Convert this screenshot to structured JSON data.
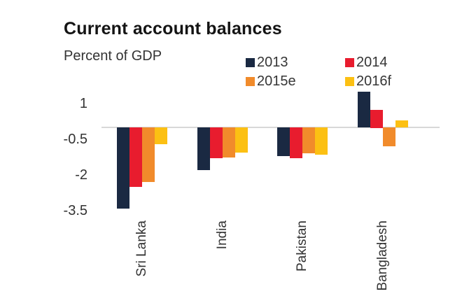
{
  "chart_data": {
    "type": "bar",
    "title": "Current account balances",
    "subtitle": "Percent of GDP",
    "categories": [
      "Sri Lanka",
      "India",
      "Pakistan",
      "Bangladesh"
    ],
    "series": [
      {
        "name": "2013",
        "color": "#1a2942",
        "values": [
          -3.4,
          -1.8,
          -1.2,
          1.5
        ]
      },
      {
        "name": "2014",
        "color": "#e81c2e",
        "values": [
          -2.5,
          -1.3,
          -1.3,
          0.75
        ]
      },
      {
        "name": "2015e",
        "color": "#f18b2b",
        "values": [
          -2.3,
          -1.25,
          -1.1,
          -0.8
        ]
      },
      {
        "name": "2016f",
        "color": "#fcc013",
        "values": [
          -0.7,
          -1.05,
          -1.15,
          0.3
        ]
      }
    ],
    "y_ticks": [
      "1",
      "-0.5",
      "-2",
      "-3.5"
    ],
    "ylim": [
      -3.8,
      1.7
    ],
    "xlabel": "",
    "ylabel": "",
    "grid": false,
    "legend_position": "top-right",
    "axis_line_color": "#d8d8d8",
    "background_color": "#ffffff"
  }
}
